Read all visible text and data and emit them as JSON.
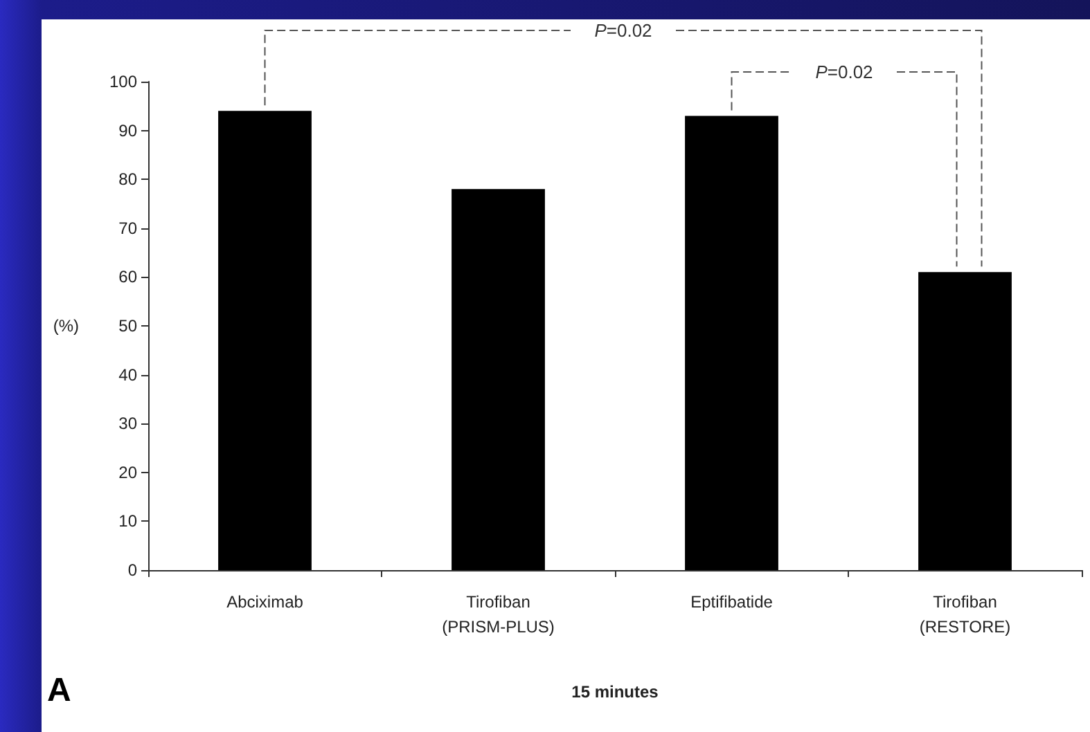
{
  "chart_data": {
    "type": "bar",
    "categories": [
      "Abciximab",
      "Tirofiban\n(PRISM-PLUS)",
      "Eptifibatide",
      "Tirofiban\n(RESTORE)"
    ],
    "values": [
      94,
      78,
      93,
      61
    ],
    "color": "#000000",
    "xlabel": "15 minutes",
    "ylabel": "(%)",
    "ylim": [
      0,
      100
    ],
    "yticks": [
      0,
      10,
      20,
      30,
      40,
      50,
      60,
      70,
      80,
      90,
      100
    ],
    "grid": false,
    "annotations": [
      "P=0.02",
      "P=0.02",
      "A"
    ]
  }
}
